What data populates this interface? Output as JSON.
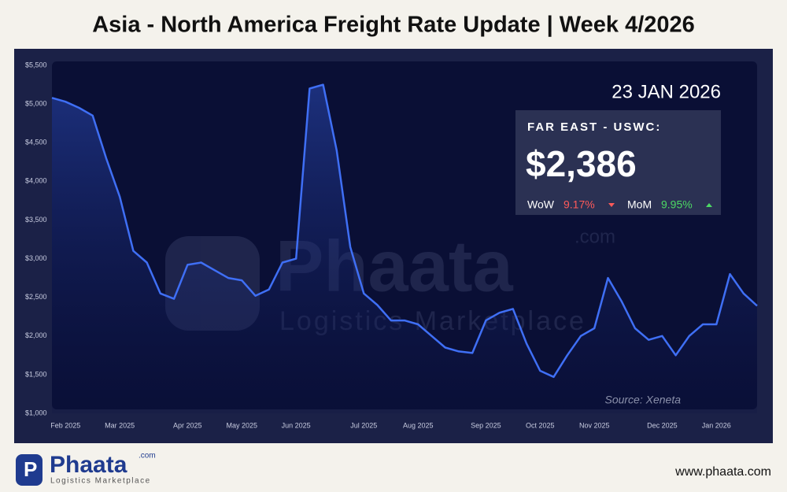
{
  "title": "Asia - North America Freight Rate Update | Week 4/2026",
  "chart_data": {
    "type": "area",
    "categories": [
      null,
      "Feb 2025",
      null,
      null,
      null,
      "Mar 2025",
      null,
      null,
      null,
      null,
      "Apr 2025",
      null,
      null,
      null,
      "May 2025",
      null,
      null,
      null,
      "Jun 2025",
      null,
      null,
      null,
      null,
      "Jul 2025",
      null,
      null,
      null,
      "Aug 2025",
      null,
      null,
      null,
      null,
      "Sep 2025",
      null,
      null,
      null,
      "Oct 2025",
      null,
      null,
      null,
      "Nov 2025",
      null,
      null,
      null,
      null,
      "Dec 2025",
      null,
      null,
      null,
      "Jan 2026",
      null,
      null,
      null
    ],
    "series": [
      {
        "name": "Far East - USWC",
        "color": "#3f6ff5",
        "values": [
          5080,
          5030,
          4950,
          4850,
          4300,
          3800,
          3100,
          2950,
          2550,
          2480,
          2920,
          2950,
          2850,
          2750,
          2720,
          2520,
          2600,
          2950,
          3000,
          5200,
          5250,
          4400,
          3150,
          2550,
          2400,
          2200,
          2200,
          2150,
          2000,
          1850,
          1800,
          1780,
          2200,
          2300,
          2350,
          1900,
          1550,
          1470,
          1750,
          2000,
          2100,
          2750,
          2450,
          2100,
          1950,
          2000,
          1750,
          2000,
          2150,
          2150,
          2800,
          2550,
          2390
        ]
      }
    ],
    "ylim": [
      1000,
      5500
    ],
    "yticks": [
      {
        "value": 1000,
        "label": "$1,000"
      },
      {
        "value": 1500,
        "label": "$1,500"
      },
      {
        "value": 2000,
        "label": "$2,000"
      },
      {
        "value": 2500,
        "label": "$2,500"
      },
      {
        "value": 3000,
        "label": "$3,000"
      },
      {
        "value": 3500,
        "label": "$3,500"
      },
      {
        "value": 4000,
        "label": "$4,000"
      },
      {
        "value": 4500,
        "label": "$4,500"
      },
      {
        "value": 5000,
        "label": "$5,000"
      },
      {
        "value": 5500,
        "label": "$5,500"
      }
    ],
    "grid": false
  },
  "info_box": {
    "date": "23 JAN 2026",
    "route": "FAR EAST - USWC:",
    "price": "$2,386",
    "wow_label": "WoW",
    "wow": "9.17%",
    "mom_label": "MoM",
    "mom": "9.95%"
  },
  "source": "Source: Xeneta",
  "watermark": {
    "brand": "Phaata",
    "domain": ".com",
    "tagline": "Logistics Marketplace"
  },
  "footer": {
    "brand": "Phaata",
    "domain": ".com",
    "tagline": "Logistics Marketplace",
    "url": "www.phaata.com"
  }
}
